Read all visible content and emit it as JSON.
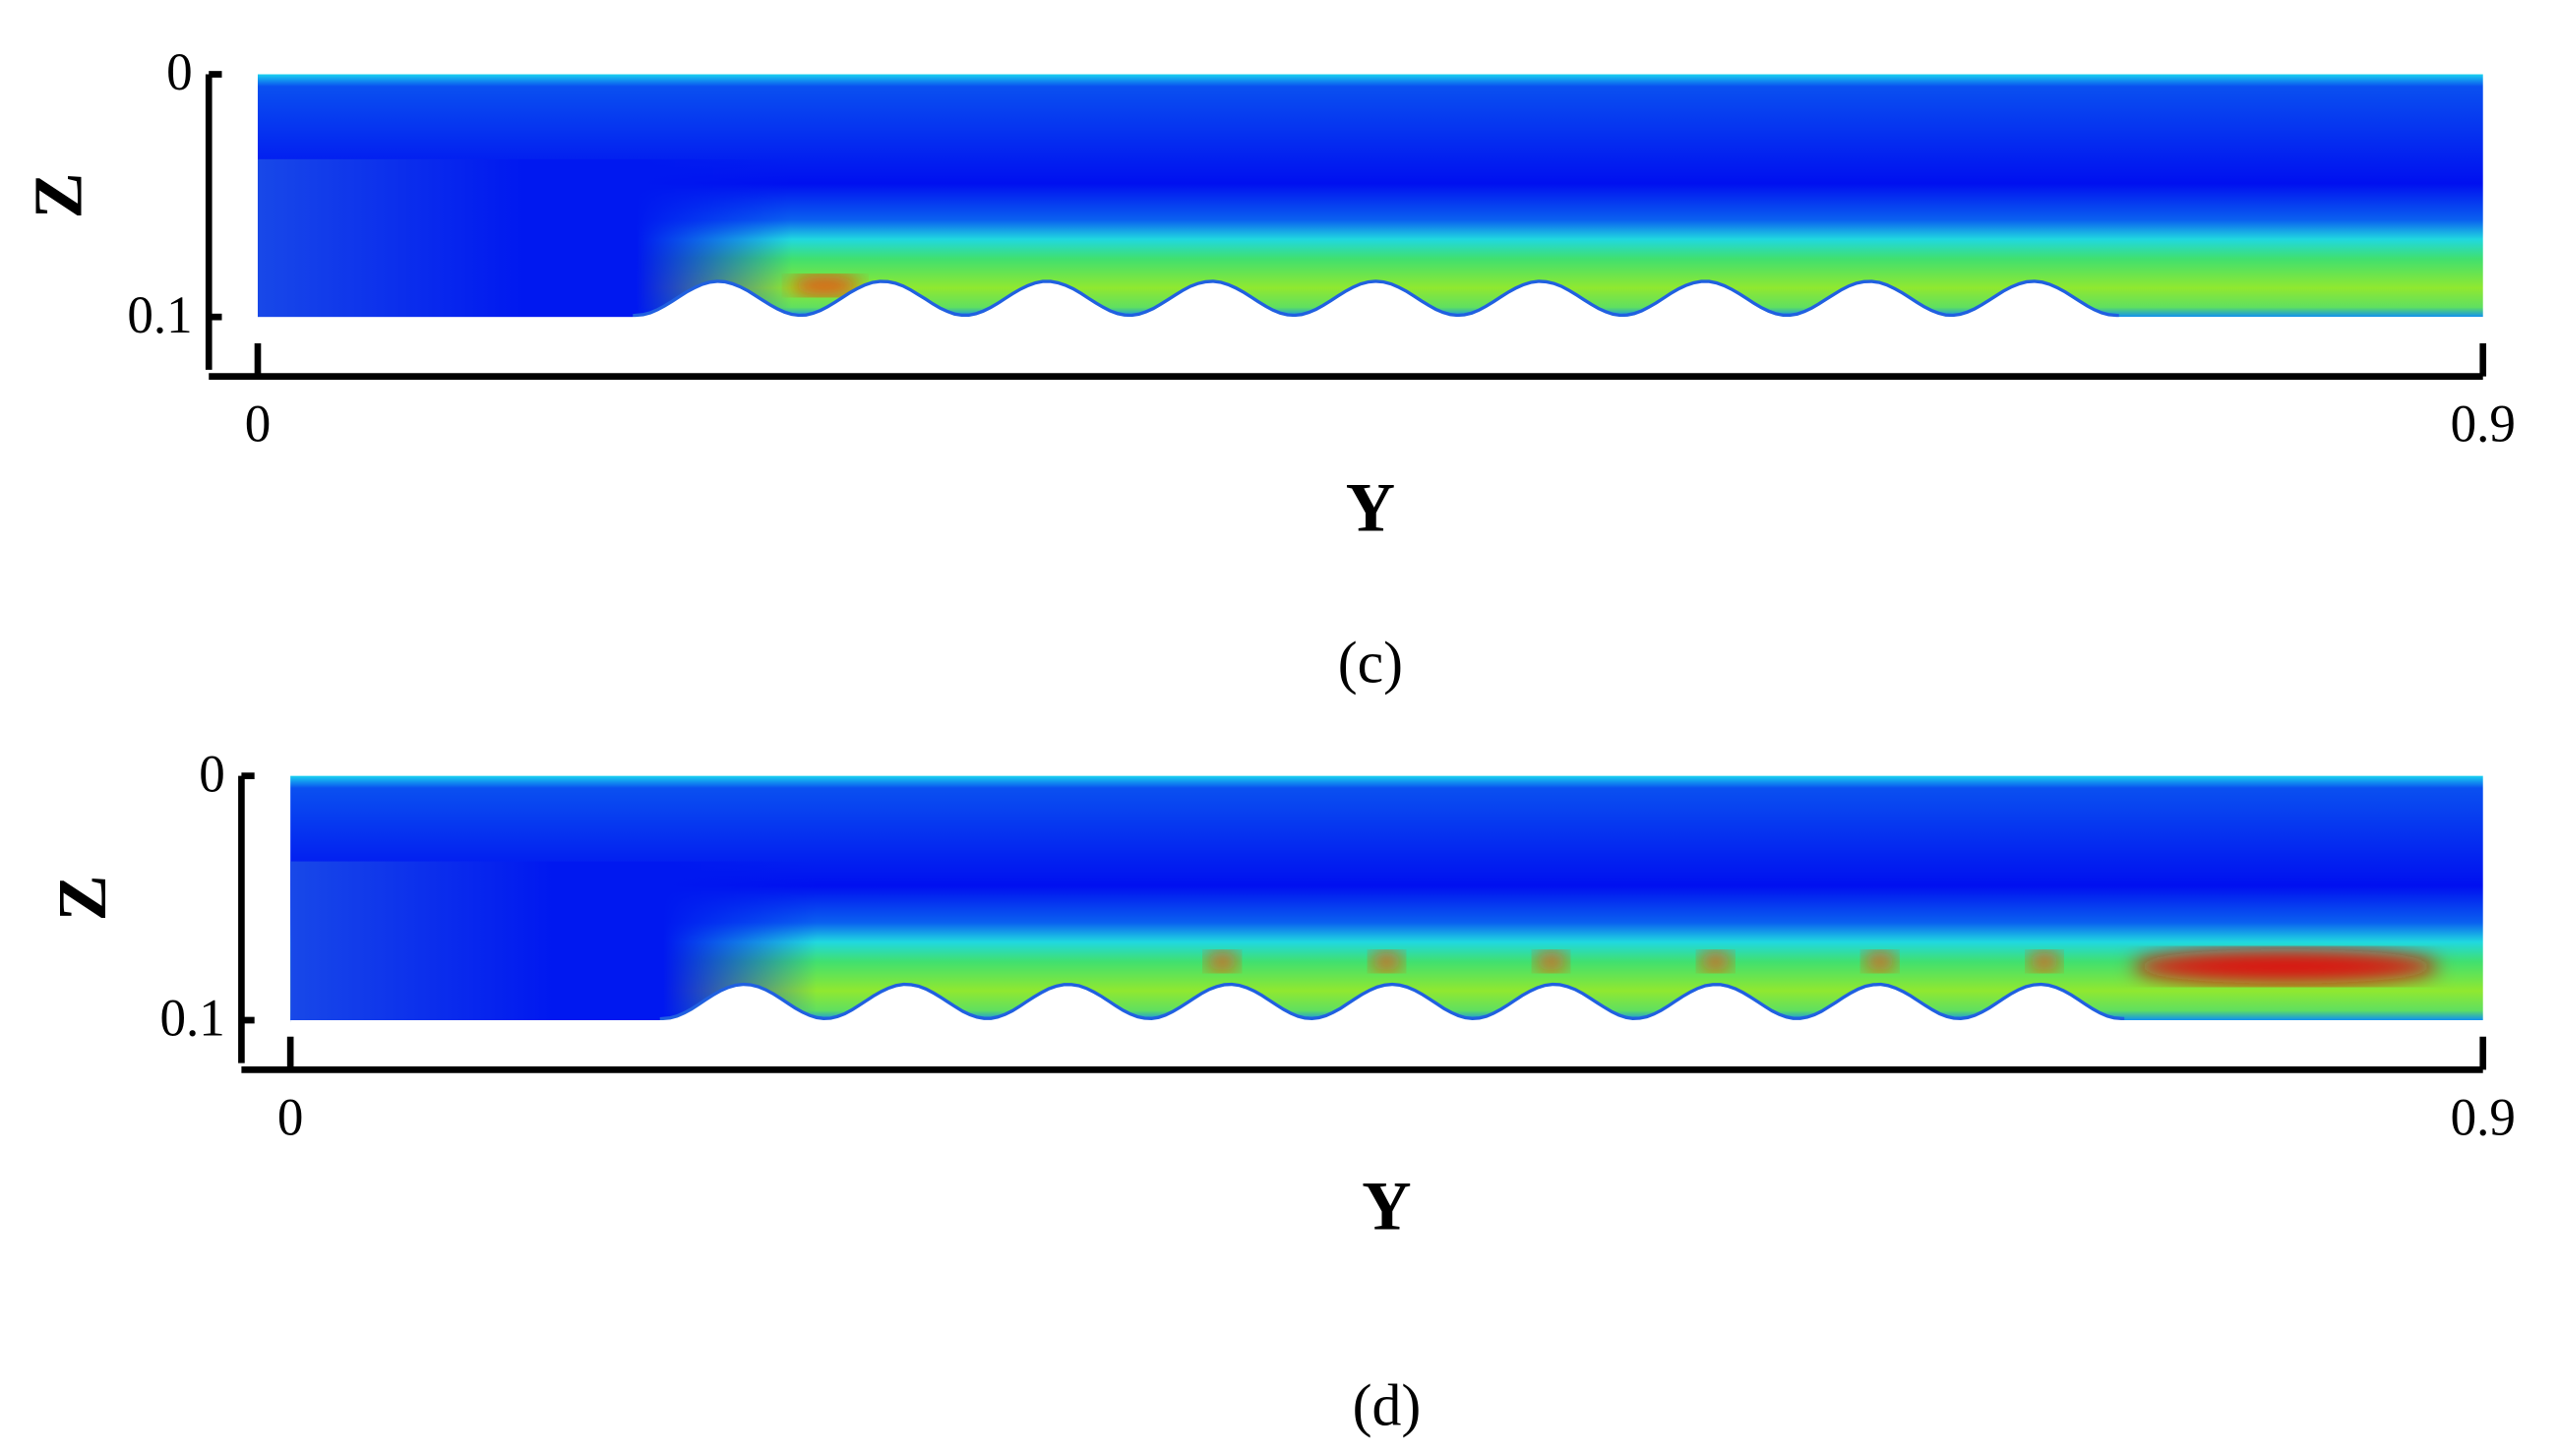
{
  "chart_data": [
    {
      "type": "contour",
      "title": "(c)",
      "xlabel": "Y",
      "ylabel": "Z",
      "xlim": [
        0,
        0.9
      ],
      "ylim": [
        0.1,
        0
      ],
      "xticks": [
        0,
        0.9
      ],
      "yticks": [
        0,
        0.1
      ],
      "hot_spot": false
    },
    {
      "type": "contour",
      "title": "(d)",
      "xlabel": "Y",
      "ylabel": "Z",
      "xlim": [
        0,
        0.9
      ],
      "ylim": [
        0.1,
        0
      ],
      "xticks": [
        0,
        0.9
      ],
      "yticks": [
        0,
        0.1
      ],
      "hot_spot": true
    }
  ]
}
